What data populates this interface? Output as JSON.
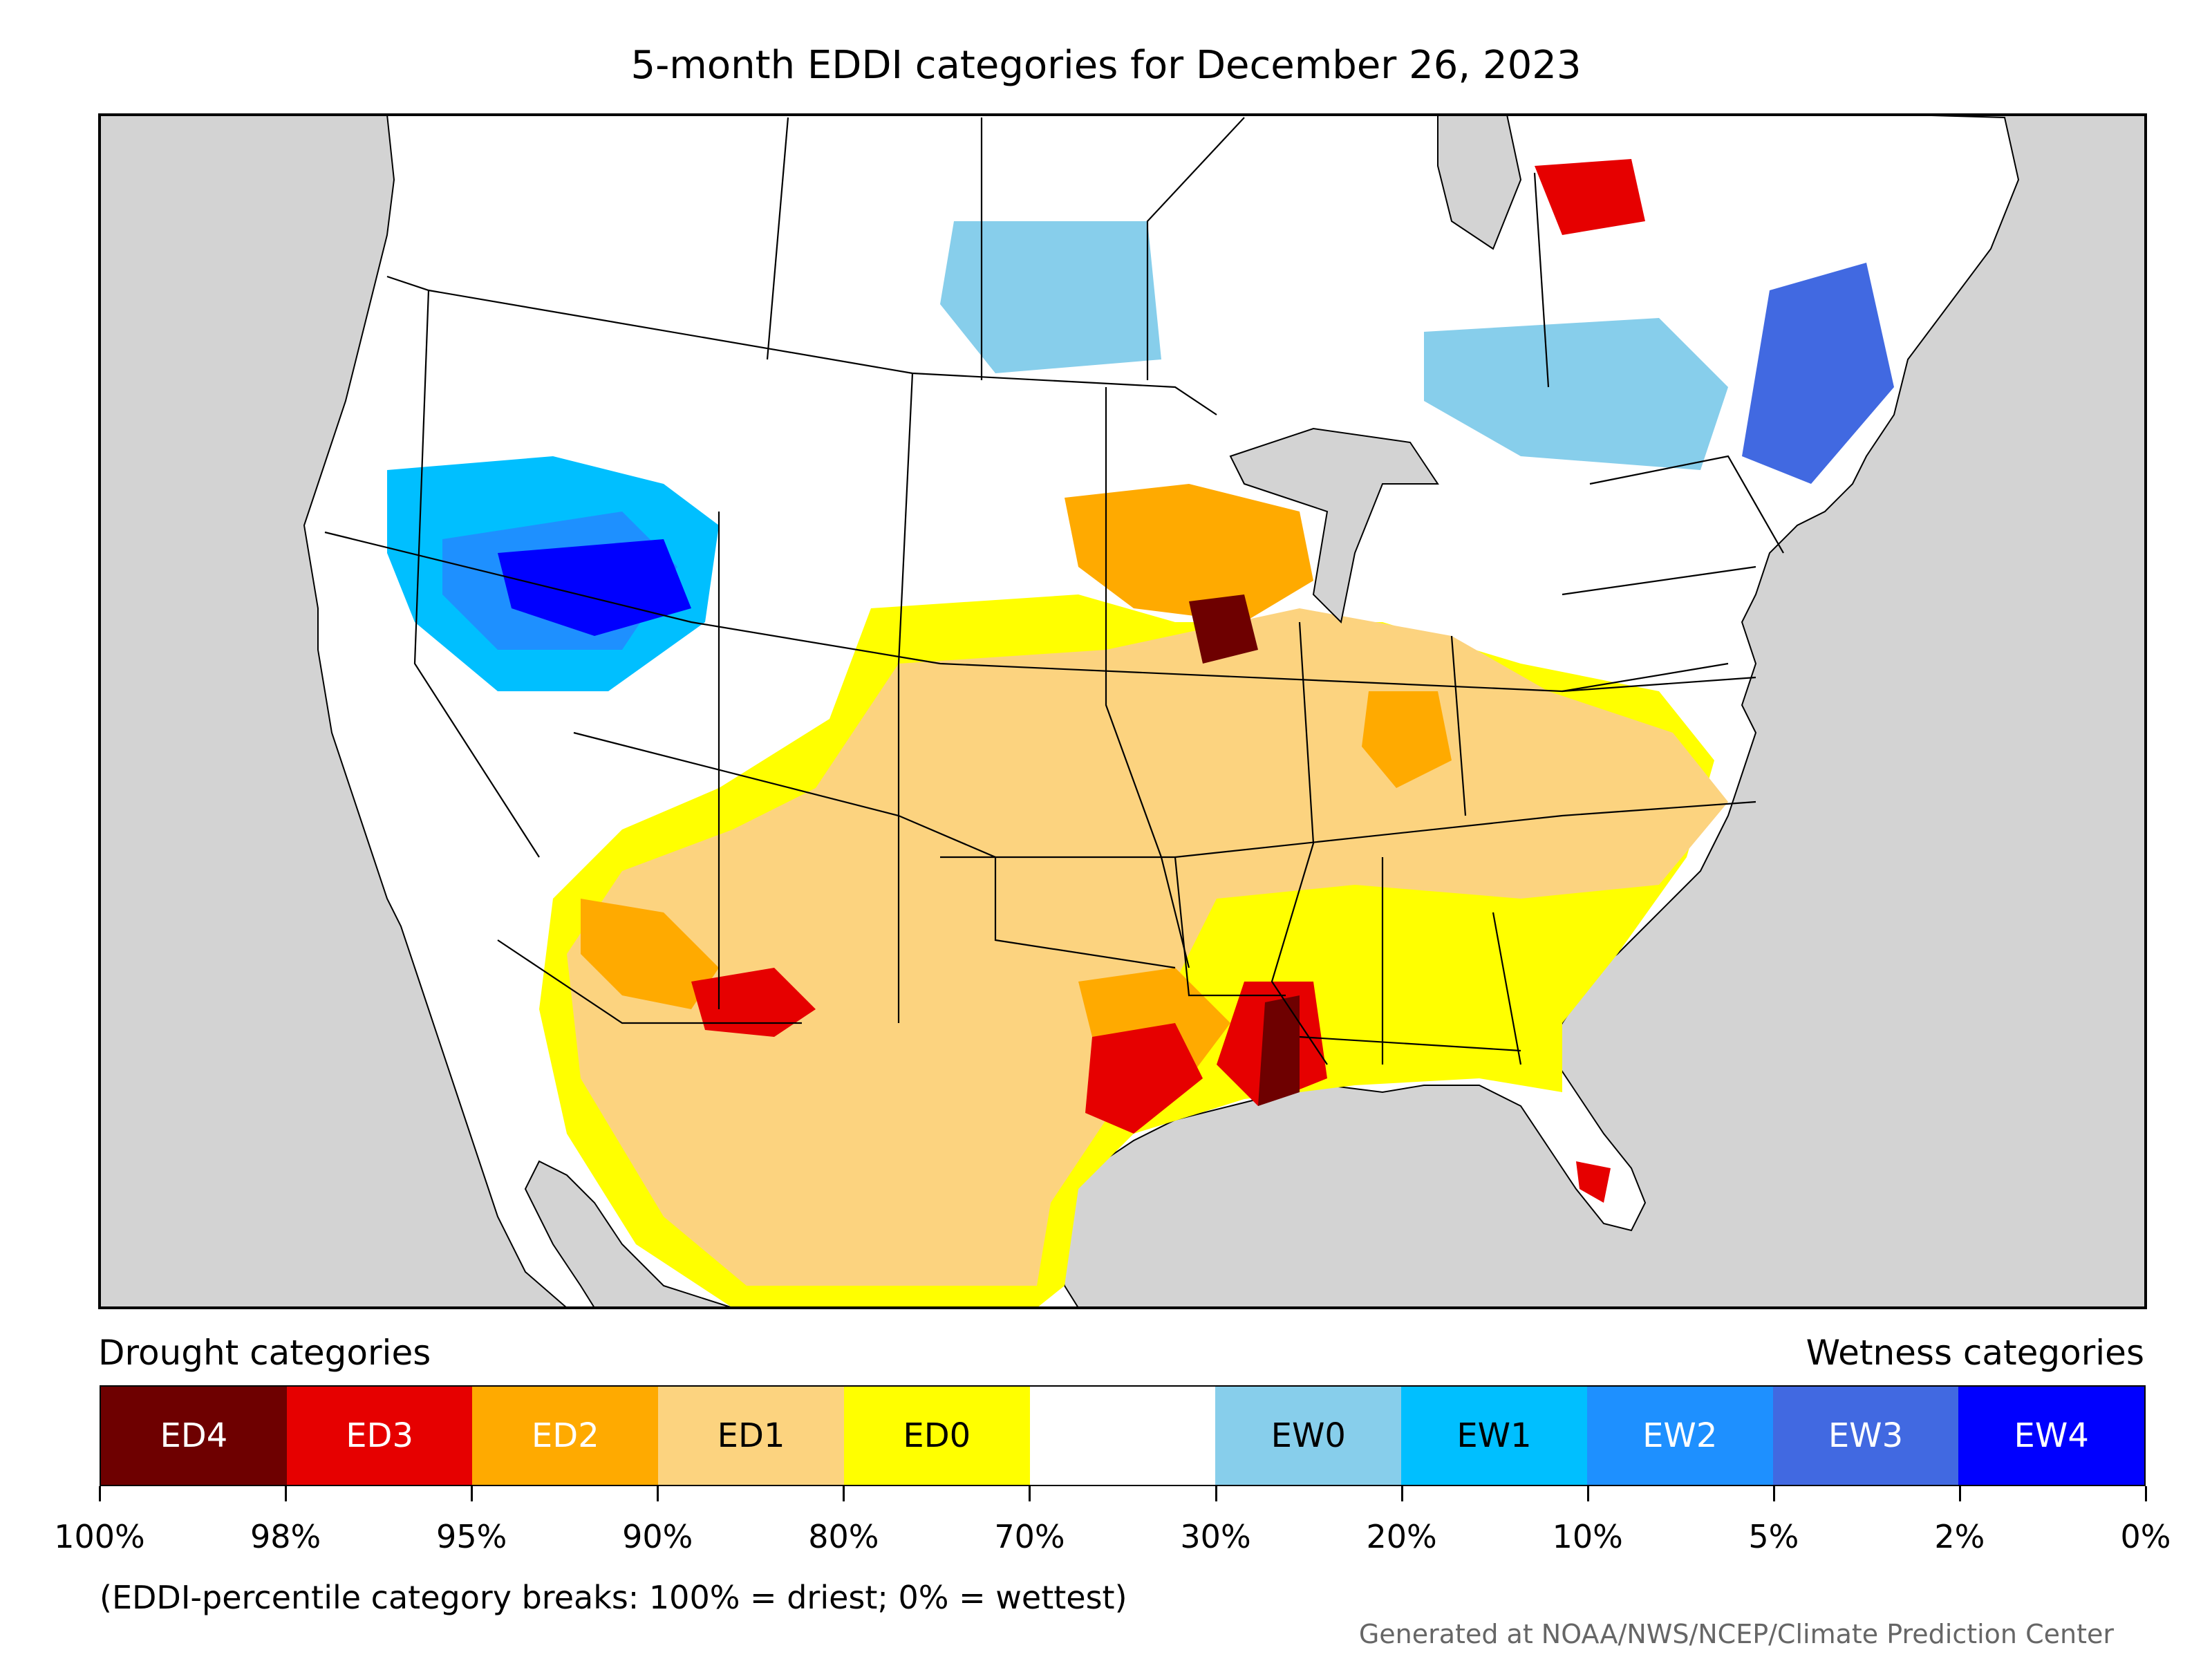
{
  "title": "5-month EDDI categories for December 26, 2023",
  "legend": {
    "left_caption": "Drought categories",
    "right_caption": "Wetness categories",
    "categories": [
      {
        "label": "ED4",
        "color": "#6e0000",
        "text_color": "#ffffff"
      },
      {
        "label": "ED3",
        "color": "#e60000",
        "text_color": "#ffffff"
      },
      {
        "label": "ED2",
        "color": "#ffaa00",
        "text_color": "#ffffff"
      },
      {
        "label": "ED1",
        "color": "#fcd37f",
        "text_color": "#000000"
      },
      {
        "label": "ED0",
        "color": "#ffff00",
        "text_color": "#000000"
      },
      {
        "label": "",
        "color": "#ffffff",
        "text_color": "#000000"
      },
      {
        "label": "EW0",
        "color": "#87ceeb",
        "text_color": "#000000"
      },
      {
        "label": "EW1",
        "color": "#00bfff",
        "text_color": "#000000"
      },
      {
        "label": "EW2",
        "color": "#1e90ff",
        "text_color": "#ffffff"
      },
      {
        "label": "EW3",
        "color": "#4169e1",
        "text_color": "#ffffff"
      },
      {
        "label": "EW4",
        "color": "#0000ff",
        "text_color": "#ffffff"
      }
    ],
    "tick_labels": [
      "100%",
      "98%",
      "95%",
      "90%",
      "80%",
      "70%",
      "30%",
      "20%",
      "10%",
      "5%",
      "2%",
      "0%"
    ]
  },
  "note": "(EDDI-percentile category breaks: 100% = driest; 0% = wettest)",
  "credit": "Generated at NOAA/NWS/NCEP/Climate Prediction Center",
  "map": {
    "ocean_color": "#d3d3d3",
    "land_color": "#ffffff",
    "border_color": "#000000"
  }
}
